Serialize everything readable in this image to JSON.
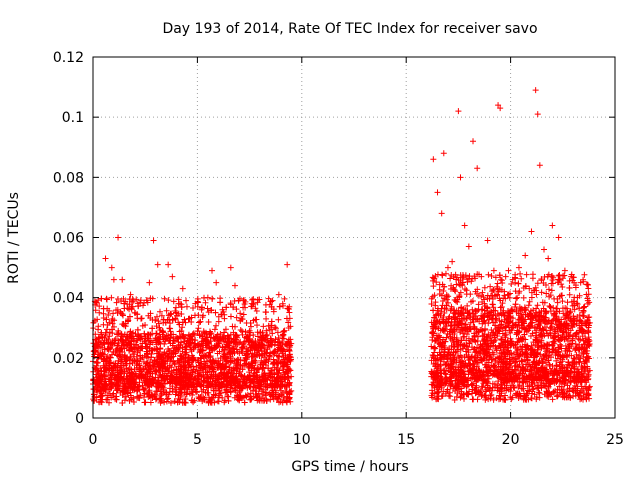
{
  "chart_data": {
    "type": "scatter",
    "title": "Day 193 of 2014, Rate Of TEC Index for receiver savo",
    "xlabel": "GPS time / hours",
    "ylabel": "ROTI / TECUs",
    "xlim": [
      0,
      25
    ],
    "ylim": [
      0,
      0.12
    ],
    "xticks": [
      0,
      5,
      10,
      15,
      20,
      25
    ],
    "xtick_labels": [
      "0",
      "5",
      "10",
      "15",
      "20",
      "25"
    ],
    "yticks": [
      0,
      0.02,
      0.04,
      0.06,
      0.08,
      0.1,
      0.12
    ],
    "ytick_labels": [
      "0",
      "0.02",
      "0.04",
      "0.06",
      "0.08",
      "0.1",
      "0.12"
    ],
    "grid": true,
    "marker": "+",
    "marker_color": "#ff0000",
    "series": [
      {
        "name": "ROTI",
        "points": [
          [
            0.1,
            0.026
          ],
          [
            0.3,
            0.035
          ],
          [
            0.5,
            0.031
          ],
          [
            0.6,
            0.053
          ],
          [
            0.9,
            0.05
          ],
          [
            1.0,
            0.046
          ],
          [
            1.2,
            0.06
          ],
          [
            1.4,
            0.046
          ],
          [
            1.5,
            0.038
          ],
          [
            1.8,
            0.041
          ],
          [
            2.0,
            0.035
          ],
          [
            2.3,
            0.033
          ],
          [
            2.7,
            0.045
          ],
          [
            2.9,
            0.059
          ],
          [
            3.1,
            0.051
          ],
          [
            3.3,
            0.034
          ],
          [
            3.6,
            0.051
          ],
          [
            3.8,
            0.047
          ],
          [
            4.1,
            0.038
          ],
          [
            4.3,
            0.043
          ],
          [
            4.5,
            0.037
          ],
          [
            4.9,
            0.038
          ],
          [
            5.2,
            0.036
          ],
          [
            5.5,
            0.04
          ],
          [
            5.7,
            0.049
          ],
          [
            5.9,
            0.045
          ],
          [
            6.2,
            0.036
          ],
          [
            6.6,
            0.05
          ],
          [
            6.8,
            0.044
          ],
          [
            7.1,
            0.033
          ],
          [
            7.5,
            0.029
          ],
          [
            7.9,
            0.025
          ],
          [
            8.3,
            0.029
          ],
          [
            8.6,
            0.039
          ],
          [
            8.9,
            0.041
          ],
          [
            9.3,
            0.051
          ],
          [
            9.4,
            0.037
          ],
          [
            16.3,
            0.086
          ],
          [
            16.5,
            0.075
          ],
          [
            16.7,
            0.068
          ],
          [
            16.8,
            0.088
          ],
          [
            17.0,
            0.05
          ],
          [
            17.2,
            0.052
          ],
          [
            17.5,
            0.102
          ],
          [
            17.6,
            0.08
          ],
          [
            17.8,
            0.064
          ],
          [
            18.0,
            0.057
          ],
          [
            18.2,
            0.092
          ],
          [
            18.4,
            0.083
          ],
          [
            18.6,
            0.047
          ],
          [
            18.9,
            0.059
          ],
          [
            19.2,
            0.049
          ],
          [
            19.4,
            0.104
          ],
          [
            19.5,
            0.103
          ],
          [
            19.7,
            0.042
          ],
          [
            19.9,
            0.049
          ],
          [
            20.1,
            0.046
          ],
          [
            20.4,
            0.05
          ],
          [
            20.7,
            0.054
          ],
          [
            21.0,
            0.062
          ],
          [
            21.2,
            0.109
          ],
          [
            21.3,
            0.101
          ],
          [
            21.4,
            0.084
          ],
          [
            21.6,
            0.056
          ],
          [
            21.8,
            0.053
          ],
          [
            22.0,
            0.064
          ],
          [
            22.3,
            0.06
          ],
          [
            22.6,
            0.049
          ],
          [
            22.9,
            0.047
          ],
          [
            23.2,
            0.04
          ],
          [
            23.5,
            0.034
          ],
          [
            23.7,
            0.039
          ]
        ]
      }
    ],
    "bands": [
      {
        "x_start": 0.0,
        "x_end": 9.5,
        "y_base": 0.005,
        "y_low": 0.01,
        "y_high": 0.028
      },
      {
        "x_start": 16.2,
        "x_end": 23.8,
        "y_base": 0.006,
        "y_low": 0.012,
        "y_high": 0.036
      }
    ]
  }
}
